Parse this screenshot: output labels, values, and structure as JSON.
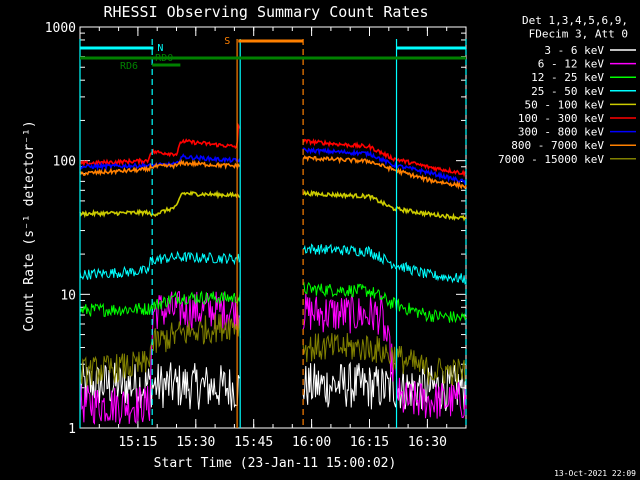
{
  "chart_data": {
    "type": "line",
    "title": "RHESSI Observing Summary Count Rates",
    "xlabel": "Start Time (23-Jan-11 15:00:02)",
    "ylabel": "Count Rate (s⁻¹ detector⁻¹)",
    "x_units": "minutes after 15:00",
    "xlim": [
      0,
      100
    ],
    "ylim": [
      1,
      1000
    ],
    "yscale": "log",
    "x_ticks": [
      {
        "v": 15,
        "label": "15:15"
      },
      {
        "v": 30,
        "label": "15:30"
      },
      {
        "v": 45,
        "label": "15:45"
      },
      {
        "v": 60,
        "label": "16:00"
      },
      {
        "v": 75,
        "label": "16:15"
      },
      {
        "v": 90,
        "label": "16:30"
      }
    ],
    "y_ticks": [
      {
        "v": 1,
        "label": "1"
      },
      {
        "v": 10,
        "label": "10"
      },
      {
        "v": 100,
        "label": "100"
      },
      {
        "v": 1000,
        "label": "1000"
      }
    ],
    "legend": {
      "placement": "right",
      "header": [
        "Det 1,3,4,5,6,9,",
        "FDecim 3, Att 0"
      ]
    },
    "series": [
      {
        "name": "3 - 6 keV",
        "color": "#ffffff",
        "points": [
          [
            18.7,
            2.1
          ],
          [
            40.7,
            2.0
          ],
          [
            67.7,
            2.1
          ],
          [
            78,
            2.0
          ],
          [
            100,
            2.0
          ]
        ]
      },
      {
        "name": "6 - 12 keV",
        "color": "#ff00ff",
        "points": [
          [
            0,
            1.5
          ],
          [
            18,
            1.5
          ],
          [
            19,
            7.6
          ],
          [
            40.7,
            7.6
          ],
          [
            57.8,
            7.3
          ],
          [
            78,
            7.0
          ],
          [
            83,
            1.6
          ],
          [
            100,
            1.6
          ]
        ]
      },
      {
        "name": "12 - 25 keV",
        "color": "#00ff00",
        "points": [
          [
            0,
            7.6
          ],
          [
            17.7,
            7.8
          ],
          [
            19,
            8.2
          ],
          [
            25,
            9.5
          ],
          [
            40.7,
            9.4
          ],
          [
            57.8,
            11
          ],
          [
            75,
            10.6
          ],
          [
            81,
            8.5
          ],
          [
            90,
            7.0
          ],
          [
            100,
            6.6
          ]
        ]
      },
      {
        "name": "25 - 50 keV",
        "color": "#00ffff",
        "points": [
          [
            0,
            14
          ],
          [
            17.7,
            15
          ],
          [
            18.3,
            18
          ],
          [
            25,
            19
          ],
          [
            40.7,
            18.5
          ],
          [
            57.8,
            22
          ],
          [
            75,
            21
          ],
          [
            81,
            17
          ],
          [
            90,
            14
          ],
          [
            100,
            13
          ]
        ]
      },
      {
        "name": "50 - 100 keV",
        "color": "#cccc00",
        "points": [
          [
            0,
            40
          ],
          [
            17.7,
            41
          ],
          [
            18.3,
            39
          ],
          [
            25,
            45
          ],
          [
            26.3,
            57
          ],
          [
            40.7,
            55
          ],
          [
            57.8,
            57
          ],
          [
            75,
            54
          ],
          [
            81,
            44
          ],
          [
            90,
            40
          ],
          [
            100,
            37
          ]
        ]
      },
      {
        "name": "100 - 300 keV",
        "color": "#ff0000",
        "points": [
          [
            0,
            95
          ],
          [
            17.7,
            100
          ],
          [
            18.3,
            117
          ],
          [
            25,
            112
          ],
          [
            26.3,
            140
          ],
          [
            40.7,
            127
          ],
          [
            41,
            180
          ],
          [
            57.8,
            140
          ],
          [
            75,
            127
          ],
          [
            81,
            104
          ],
          [
            90,
            90
          ],
          [
            100,
            80
          ]
        ]
      },
      {
        "name": "300 - 800 keV",
        "color": "#0000ff",
        "points": [
          [
            0,
            90
          ],
          [
            17.7,
            92
          ],
          [
            18.3,
            92
          ],
          [
            25,
            94
          ],
          [
            26.3,
            107
          ],
          [
            40.7,
            100
          ],
          [
            57.8,
            120
          ],
          [
            75,
            113
          ],
          [
            81,
            93
          ],
          [
            90,
            82
          ],
          [
            100,
            69
          ]
        ]
      },
      {
        "name": "800 - 7000 keV",
        "color": "#ff8000",
        "points": [
          [
            0,
            80
          ],
          [
            17.7,
            86
          ],
          [
            18.3,
            90
          ],
          [
            25,
            92
          ],
          [
            26.3,
            96
          ],
          [
            40.7,
            91
          ],
          [
            57.8,
            105
          ],
          [
            75,
            99
          ],
          [
            81,
            86
          ],
          [
            90,
            72
          ],
          [
            100,
            64
          ]
        ]
      },
      {
        "name": "7000 - 15000 keV",
        "color": "#808000",
        "points": [
          [
            0,
            2.6
          ],
          [
            17.7,
            3.0
          ],
          [
            18.3,
            4.2
          ],
          [
            25,
            5.0
          ],
          [
            40.7,
            6.0
          ],
          [
            57.8,
            4.0
          ],
          [
            75,
            4.0
          ],
          [
            81,
            3.5
          ],
          [
            90,
            2.7
          ],
          [
            100,
            2.6
          ]
        ]
      }
    ],
    "attenuator_bar": {
      "label": "N",
      "color": "#00ffff",
      "segments": [
        [
          0,
          19
        ],
        [
          82,
          100
        ]
      ]
    },
    "annotations": [
      {
        "label": "RD6",
        "color": "#008000",
        "from": 0,
        "to": 26
      },
      {
        "label": "RD0",
        "color": "#008000",
        "from": 18.7,
        "to": 26
      },
      {
        "label": "S",
        "color": "#ff8000",
        "from": 41,
        "to": 57.8
      }
    ],
    "vertical_markers": [
      {
        "x": 0,
        "color": "#00ffff",
        "style": "solid"
      },
      {
        "x": 18.7,
        "color": "#00ffff",
        "style": "dashed"
      },
      {
        "x": 40.7,
        "color": "#ff8000",
        "style": "solid"
      },
      {
        "x": 41.5,
        "color": "#00ffff",
        "style": "solid"
      },
      {
        "x": 57.8,
        "color": "#ff8000",
        "style": "dashed"
      },
      {
        "x": 82,
        "color": "#00ffff",
        "style": "solid"
      },
      {
        "x": 100,
        "color": "#00ffff",
        "style": "dashed"
      }
    ],
    "gaps": [
      [
        41.6,
        57.7
      ]
    ]
  },
  "footer_date": "13-Oct-2021 22:09"
}
